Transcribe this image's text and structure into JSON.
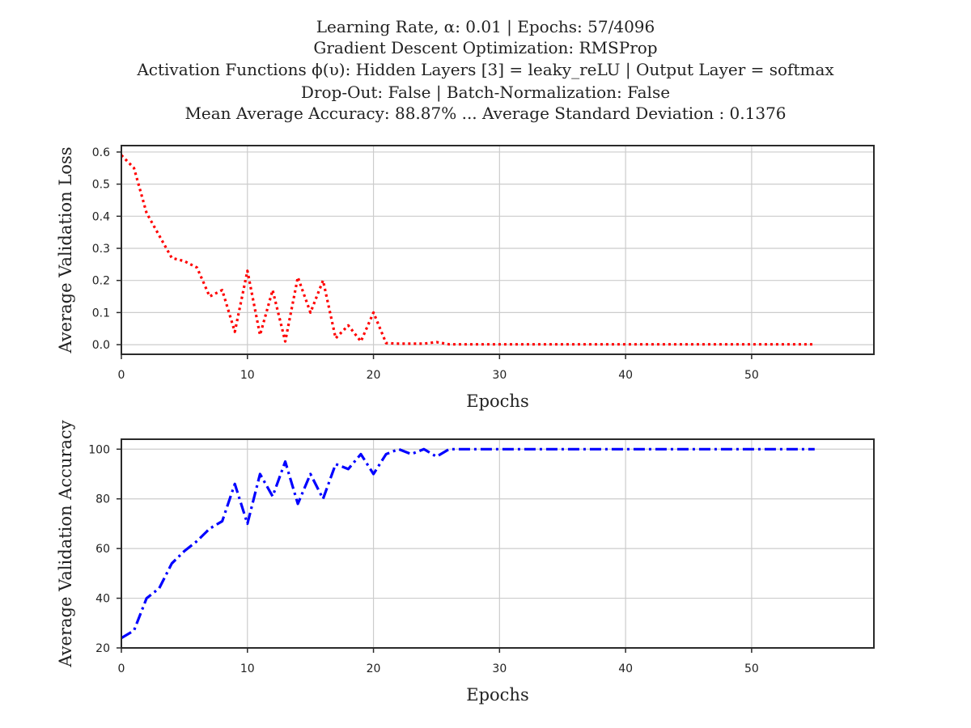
{
  "figure": {
    "title_lines": [
      "Learning Rate, α: 0.01 | Epochs: 57/4096",
      "Gradient Descent Optimization: RMSProp",
      "Activation Functions ϕ(υ): Hidden Layers [3] = leaky_reLU | Output Layer = softmax",
      "Drop-Out: False | Batch-Normalization: False",
      "Mean Average Accuracy: 88.87% ... Average Standard Deviation : 0.1376"
    ]
  },
  "chart_data": [
    {
      "type": "line",
      "xlabel": "Epochs",
      "ylabel": "Average Validation Loss",
      "xlim": [
        0,
        59.7
      ],
      "ylim": [
        -0.03,
        0.62
      ],
      "xticks": [
        0,
        10,
        20,
        30,
        40,
        50
      ],
      "yticks": [
        0.0,
        0.1,
        0.2,
        0.3,
        0.4,
        0.5,
        0.6
      ],
      "ytick_labels": [
        "0.0",
        "0.1",
        "0.2",
        "0.3",
        "0.4",
        "0.5",
        "0.6"
      ],
      "grid": true,
      "series": [
        {
          "color": "#ff0000",
          "linestyle": "dotted",
          "x": [
            0,
            1,
            2,
            3,
            4,
            5,
            6,
            7,
            8,
            9,
            10,
            11,
            12,
            13,
            14,
            15,
            16,
            17,
            18,
            19,
            20,
            21,
            22,
            23,
            24,
            25,
            26,
            27,
            28,
            29,
            30,
            31,
            32,
            33,
            34,
            35,
            36,
            37,
            38,
            39,
            40,
            41,
            42,
            43,
            44,
            45,
            46,
            47,
            48,
            49,
            50,
            51,
            52,
            53,
            54,
            55
          ],
          "values": [
            0.59,
            0.55,
            0.41,
            0.34,
            0.27,
            0.26,
            0.24,
            0.15,
            0.17,
            0.04,
            0.23,
            0.03,
            0.17,
            0.01,
            0.21,
            0.1,
            0.2,
            0.02,
            0.06,
            0.01,
            0.1,
            0.005,
            0.003,
            0.003,
            0.003,
            0.008,
            0.001,
            0.001,
            0.001,
            0.001,
            0.001,
            0.001,
            0.001,
            0.001,
            0.001,
            0.001,
            0.001,
            0.001,
            0.001,
            0.001,
            0.001,
            0.001,
            0.001,
            0.001,
            0.001,
            0.001,
            0.001,
            0.001,
            0.001,
            0.001,
            0.001,
            0.001,
            0.001,
            0.001,
            0.001,
            0.001
          ]
        }
      ]
    },
    {
      "type": "line",
      "xlabel": "Epochs",
      "ylabel": "Average Validation Accuracy",
      "xlim": [
        0,
        59.7
      ],
      "ylim": [
        20,
        104
      ],
      "xticks": [
        0,
        10,
        20,
        30,
        40,
        50
      ],
      "yticks": [
        20,
        40,
        60,
        80,
        100
      ],
      "ytick_labels": [
        "20",
        "40",
        "60",
        "80",
        "100"
      ],
      "grid": true,
      "series": [
        {
          "color": "#0000ff",
          "linestyle": "dashdot",
          "x": [
            0,
            1,
            2,
            3,
            4,
            5,
            6,
            7,
            8,
            9,
            10,
            11,
            12,
            13,
            14,
            15,
            16,
            17,
            18,
            19,
            20,
            21,
            22,
            23,
            24,
            25,
            26,
            27,
            28,
            29,
            30,
            31,
            32,
            33,
            34,
            35,
            36,
            37,
            38,
            39,
            40,
            41,
            42,
            43,
            44,
            45,
            46,
            47,
            48,
            49,
            50,
            51,
            52,
            53,
            54,
            55
          ],
          "values": [
            24,
            27,
            40,
            44,
            54,
            59,
            63,
            68,
            71,
            86,
            70,
            90,
            81,
            95,
            78,
            90,
            80,
            94,
            92,
            98,
            90,
            98,
            100,
            98,
            100,
            97,
            100,
            100,
            100,
            100,
            100,
            100,
            100,
            100,
            100,
            100,
            100,
            100,
            100,
            100,
            100,
            100,
            100,
            100,
            100,
            100,
            100,
            100,
            100,
            100,
            100,
            100,
            100,
            100,
            100,
            100
          ]
        }
      ]
    }
  ]
}
